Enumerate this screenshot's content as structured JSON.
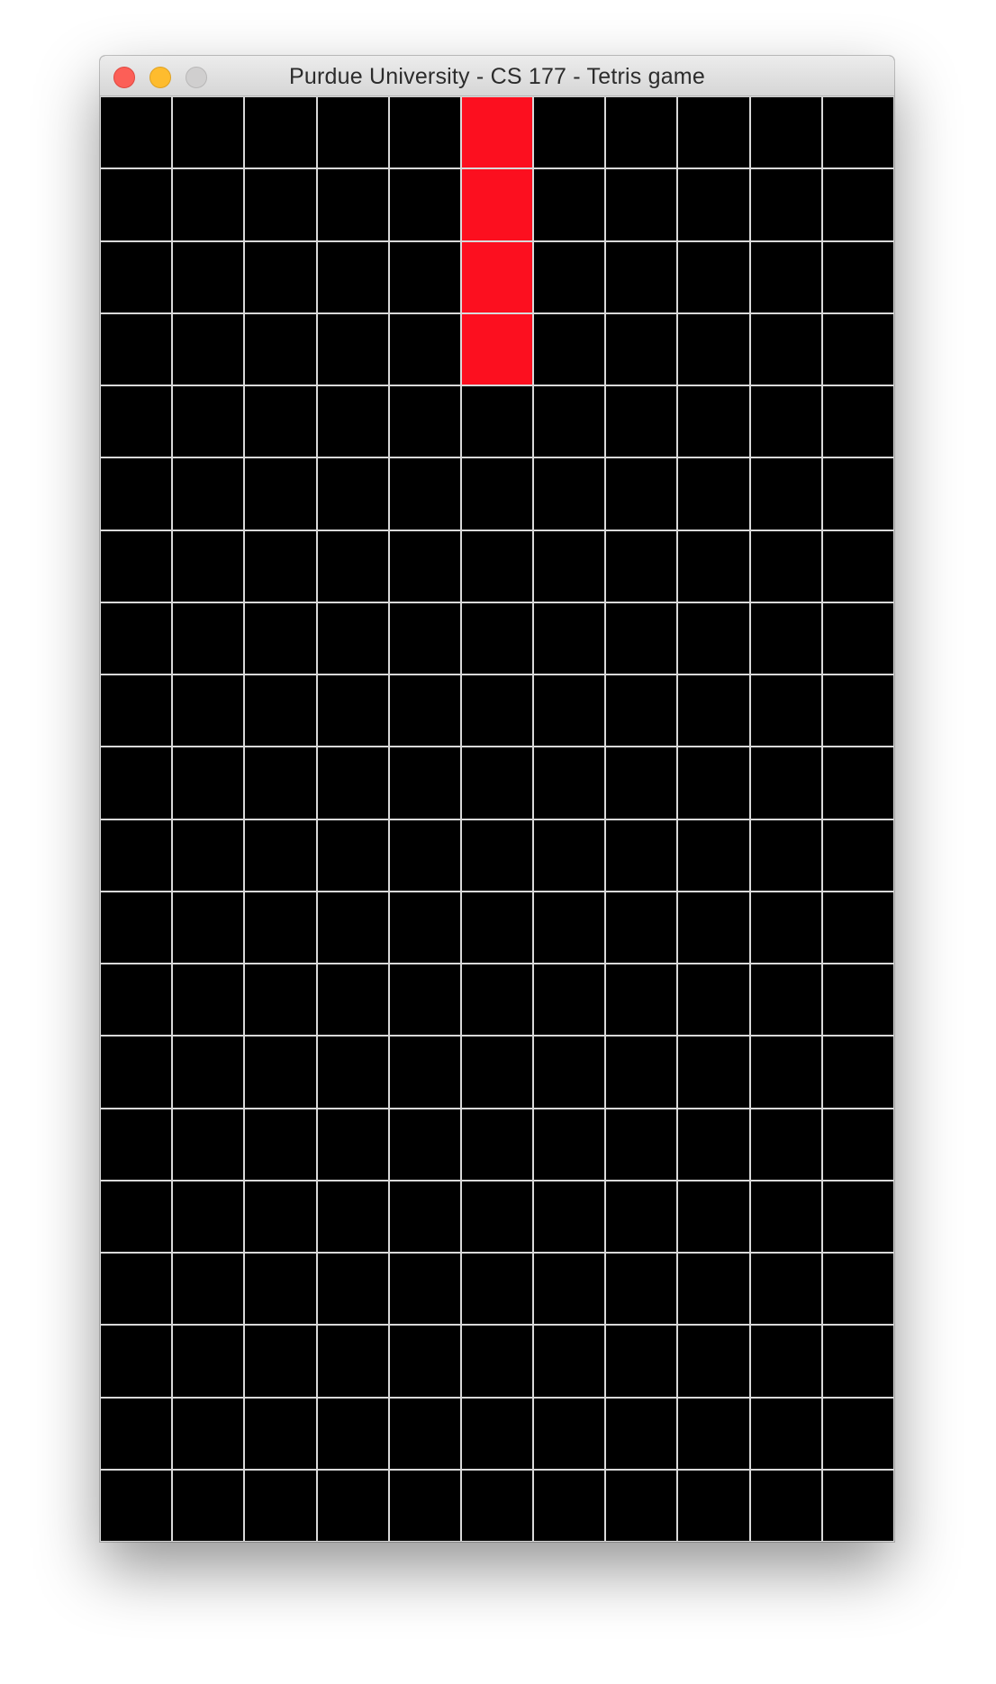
{
  "window": {
    "title": "Purdue University - CS 177 - Tetris game",
    "buttons": [
      {
        "name": "close",
        "color": "#fc5f57"
      },
      {
        "name": "minimize",
        "color": "#febc2e"
      },
      {
        "name": "zoom",
        "color": "#d0cfcf"
      }
    ]
  },
  "board": {
    "columns": 11,
    "rows": 20,
    "empty_color": "#000000",
    "grid_line_color": "#d9d9d9",
    "active_piece": {
      "shape": "I",
      "color": "#fc0f1f",
      "cells": [
        {
          "row": 0,
          "col": 5
        },
        {
          "row": 1,
          "col": 5
        },
        {
          "row": 2,
          "col": 5
        },
        {
          "row": 3,
          "col": 5
        }
      ]
    }
  }
}
